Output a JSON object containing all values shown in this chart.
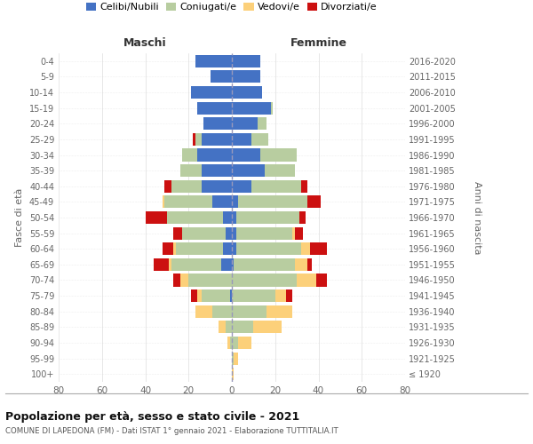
{
  "age_groups": [
    "100+",
    "95-99",
    "90-94",
    "85-89",
    "80-84",
    "75-79",
    "70-74",
    "65-69",
    "60-64",
    "55-59",
    "50-54",
    "45-49",
    "40-44",
    "35-39",
    "30-34",
    "25-29",
    "20-24",
    "15-19",
    "10-14",
    "5-9",
    "0-4"
  ],
  "birth_years": [
    "≤ 1920",
    "1921-1925",
    "1926-1930",
    "1931-1935",
    "1936-1940",
    "1941-1945",
    "1946-1950",
    "1951-1955",
    "1956-1960",
    "1961-1965",
    "1966-1970",
    "1971-1975",
    "1976-1980",
    "1981-1985",
    "1986-1990",
    "1991-1995",
    "1996-2000",
    "2001-2005",
    "2006-2010",
    "2011-2015",
    "2016-2020"
  ],
  "males": {
    "celibi": [
      0,
      0,
      0,
      0,
      0,
      1,
      0,
      5,
      4,
      3,
      4,
      9,
      14,
      14,
      16,
      14,
      13,
      16,
      19,
      10,
      17
    ],
    "coniugati": [
      0,
      0,
      1,
      3,
      9,
      13,
      20,
      23,
      22,
      20,
      26,
      22,
      14,
      10,
      7,
      3,
      0,
      0,
      0,
      0,
      0
    ],
    "vedovi": [
      0,
      0,
      1,
      3,
      8,
      2,
      4,
      1,
      1,
      0,
      0,
      1,
      0,
      0,
      0,
      0,
      0,
      0,
      0,
      0,
      0
    ],
    "divorziati": [
      0,
      0,
      0,
      0,
      0,
      3,
      3,
      7,
      5,
      4,
      10,
      0,
      3,
      0,
      0,
      1,
      0,
      0,
      0,
      0,
      0
    ]
  },
  "females": {
    "nubili": [
      0,
      0,
      0,
      0,
      0,
      0,
      0,
      1,
      2,
      2,
      2,
      3,
      9,
      15,
      13,
      9,
      12,
      18,
      14,
      13,
      13
    ],
    "coniugate": [
      0,
      1,
      3,
      10,
      16,
      20,
      30,
      28,
      30,
      26,
      29,
      32,
      23,
      14,
      17,
      8,
      4,
      1,
      0,
      0,
      0
    ],
    "vedove": [
      1,
      2,
      6,
      13,
      12,
      5,
      9,
      6,
      4,
      1,
      0,
      0,
      0,
      0,
      0,
      0,
      0,
      0,
      0,
      0,
      0
    ],
    "divorziate": [
      0,
      0,
      0,
      0,
      0,
      3,
      5,
      2,
      8,
      4,
      3,
      6,
      3,
      0,
      0,
      0,
      0,
      0,
      0,
      0,
      0
    ]
  },
  "colors": {
    "celibi": "#4472c4",
    "coniugati": "#b8cda0",
    "vedovi": "#fcd07a",
    "divorziati": "#cc1010"
  },
  "xlim": 80,
  "title": "Popolazione per età, sesso e stato civile - 2021",
  "subtitle": "COMUNE DI LAPEDONA (FM) - Dati ISTAT 1° gennaio 2021 - Elaborazione TUTTITALIA.IT",
  "ylabel_left": "Fasce di età",
  "ylabel_right": "Anni di nascita",
  "header_left": "Maschi",
  "header_right": "Femmine",
  "legend_labels": [
    "Celibi/Nubili",
    "Coniugati/e",
    "Vedovi/e",
    "Divorziati/e"
  ]
}
